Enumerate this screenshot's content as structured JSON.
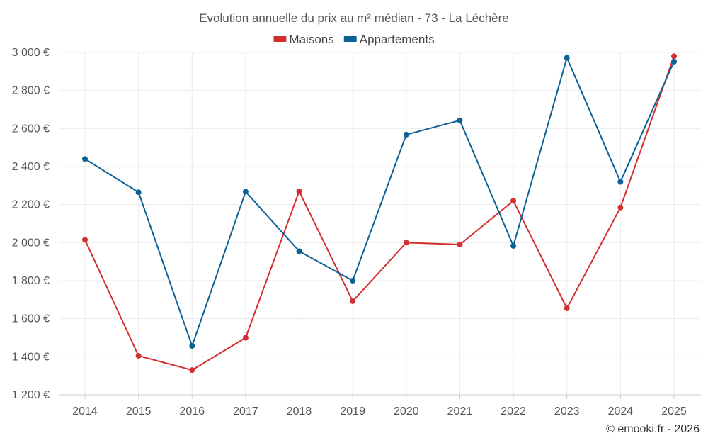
{
  "chart_data": {
    "type": "line",
    "title": "Evolution annuelle du prix au m² médian - 73 - La Léchère",
    "categories": [
      "2014",
      "2015",
      "2016",
      "2017",
      "2018",
      "2019",
      "2020",
      "2021",
      "2022",
      "2023",
      "2024",
      "2025"
    ],
    "series": [
      {
        "name": "Maisons",
        "color": "#d32f2f",
        "values": [
          2015,
          1405,
          1330,
          1500,
          2270,
          1692,
          2000,
          1990,
          2220,
          1655,
          2185,
          2980
        ]
      },
      {
        "name": "Appartements",
        "color": "#0b6196",
        "values": [
          2440,
          2265,
          1457,
          2268,
          1955,
          1800,
          2568,
          2643,
          1983,
          2972,
          2320,
          2952
        ]
      }
    ],
    "ylim": [
      1200,
      3000
    ],
    "yticks": [
      1200,
      1400,
      1600,
      1800,
      2000,
      2200,
      2400,
      2600,
      2800,
      3000
    ],
    "ytick_labels": [
      "1 200 €",
      "1 400 €",
      "1 600 €",
      "1 800 €",
      "2 000 €",
      "2 200 €",
      "2 400 €",
      "2 600 €",
      "2 800 €",
      "3 000 €"
    ],
    "xlabel": "",
    "ylabel": "",
    "grid": true,
    "legend_position": "top-center"
  },
  "credit": "© emooki.fr - 2026"
}
